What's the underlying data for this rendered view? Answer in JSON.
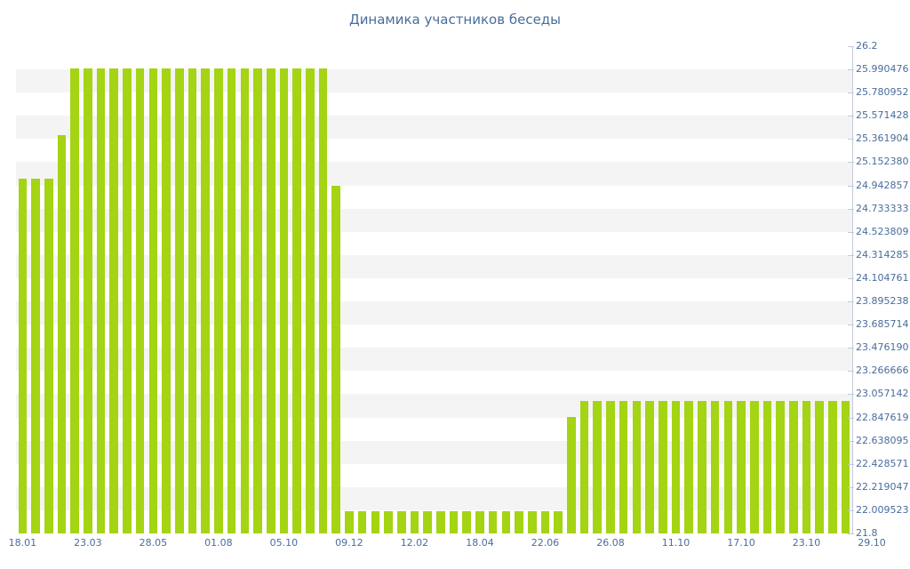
{
  "chart_data": {
    "type": "bar",
    "title": "Динамика участников беседы",
    "ylim": [
      21.8,
      26.2
    ],
    "y_axis_position": "right",
    "grid": "striped-horizontal",
    "legend": false,
    "y_tick_labels": [
      "26.2",
      "25.990476",
      "25.780952",
      "25.571428",
      "25.361904",
      "25.152380",
      "24.942857",
      "24.733333",
      "24.523809",
      "24.314285",
      "24.104761",
      "23.895238",
      "23.685714",
      "23.476190",
      "23.266666",
      "23.057142",
      "22.847619",
      "22.638095",
      "22.428571",
      "22.219047",
      "22.009523",
      "21.8"
    ],
    "x_tick_labels": [
      "18.01",
      "23.03",
      "28.05",
      "01.08",
      "05.10",
      "09.12",
      "12.02",
      "18.04",
      "22.06",
      "26.08",
      "11.10",
      "17.10",
      "23.10",
      "29.10"
    ],
    "x_label_every": 5,
    "values": [
      25,
      25,
      25,
      25.4,
      26,
      26,
      26,
      26,
      26,
      26,
      26,
      26,
      26,
      26,
      26,
      26,
      26,
      26,
      26,
      26,
      26,
      26,
      26,
      26,
      24.94,
      22,
      22,
      22,
      22,
      22,
      22,
      22,
      22,
      22,
      22,
      22,
      22,
      22,
      22,
      22,
      22,
      22,
      22.85,
      23,
      23,
      23,
      23,
      23,
      23,
      23,
      23,
      23,
      23,
      23,
      23,
      23,
      23,
      23,
      23,
      23,
      23,
      23,
      23,
      23
    ],
    "colors": {
      "bar": "#a4d413",
      "label": "#4a6d9b",
      "stripe": "#f4f4f4",
      "axis": "#c2cad8"
    }
  }
}
